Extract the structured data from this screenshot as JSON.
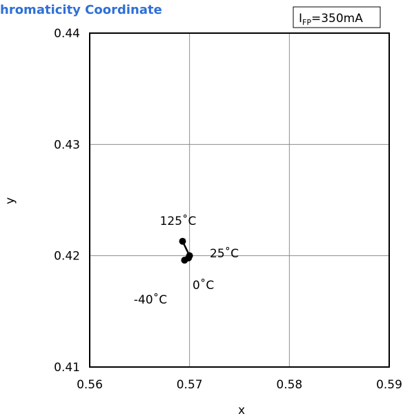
{
  "chart_data": {
    "type": "scatter",
    "title": "hromaticity Coordinate",
    "xlabel": "x",
    "ylabel": "y",
    "xlim": [
      0.56,
      0.59
    ],
    "ylim": [
      0.41,
      0.44
    ],
    "xticks": [
      0.56,
      0.57,
      0.58,
      0.59
    ],
    "yticks": [
      0.41,
      0.42,
      0.43,
      0.44
    ],
    "xtick_labels": [
      "0.56",
      "0.57",
      "0.58",
      "0.59"
    ],
    "ytick_labels": [
      "0.41",
      "0.42",
      "0.43",
      "0.44"
    ],
    "grid": true,
    "legend_box": {
      "main": "I",
      "sub": "FP",
      "rest": "=350mA"
    },
    "series": [
      {
        "color": "#000000",
        "points": [
          {
            "x": 0.5693,
            "y": 0.4213
          },
          {
            "x": 0.57,
            "y": 0.42
          },
          {
            "x": 0.5699,
            "y": 0.4198
          },
          {
            "x": 0.5695,
            "y": 0.4196
          }
        ]
      }
    ],
    "annotations": [
      {
        "text": "125˚C"
      },
      {
        "text": "25˚C"
      },
      {
        "text": "0˚C"
      },
      {
        "text": "-40˚C"
      }
    ],
    "colors": {
      "title": "#2f6fd6",
      "grid": "#8c8c8c",
      "axis": "#000000"
    }
  }
}
